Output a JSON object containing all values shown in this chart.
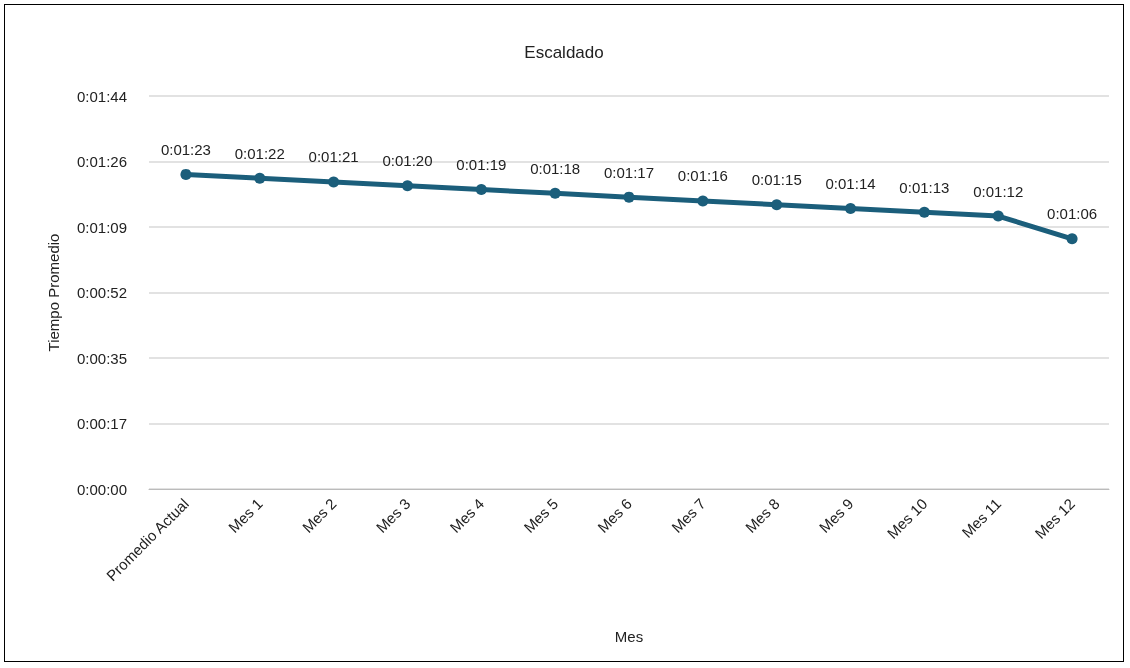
{
  "chart_data": {
    "type": "line",
    "title": "Escaldado",
    "xlabel": "Mes",
    "ylabel": "Tiempo Promedio",
    "categories": [
      "Promedio Actual",
      "Mes 1",
      "Mes 2",
      "Mes 3",
      "Mes 4",
      "Mes 5",
      "Mes 6",
      "Mes 7",
      "Mes 8",
      "Mes 9",
      "Mes 10",
      "Mes 11",
      "Mes 12"
    ],
    "series": [
      {
        "color": "#1b5e7b",
        "values": [
          83,
          82,
          81,
          80,
          79,
          78,
          77,
          76,
          75,
          74,
          73,
          72,
          66
        ],
        "value_labels": [
          "0:01:23",
          "0:01:22",
          "0:01:21",
          "0:01:20",
          "0:01:19",
          "0:01:18",
          "0:01:17",
          "0:01:16",
          "0:01:15",
          "0:01:14",
          "0:01:13",
          "0:01:12",
          "0:01:06"
        ]
      }
    ],
    "ylim": [
      0,
      103.68
    ],
    "yticks": [
      {
        "value": 0,
        "label": "0:00:00"
      },
      {
        "value": 17.28,
        "label": "0:00:17"
      },
      {
        "value": 34.56,
        "label": "0:00:35"
      },
      {
        "value": 51.84,
        "label": "0:00:52"
      },
      {
        "value": 69.12,
        "label": "0:01:09"
      },
      {
        "value": 86.4,
        "label": "0:01:26"
      },
      {
        "value": 103.68,
        "label": "0:01:44"
      }
    ],
    "grid": "y",
    "marker": "circle",
    "line_style": "solid"
  }
}
